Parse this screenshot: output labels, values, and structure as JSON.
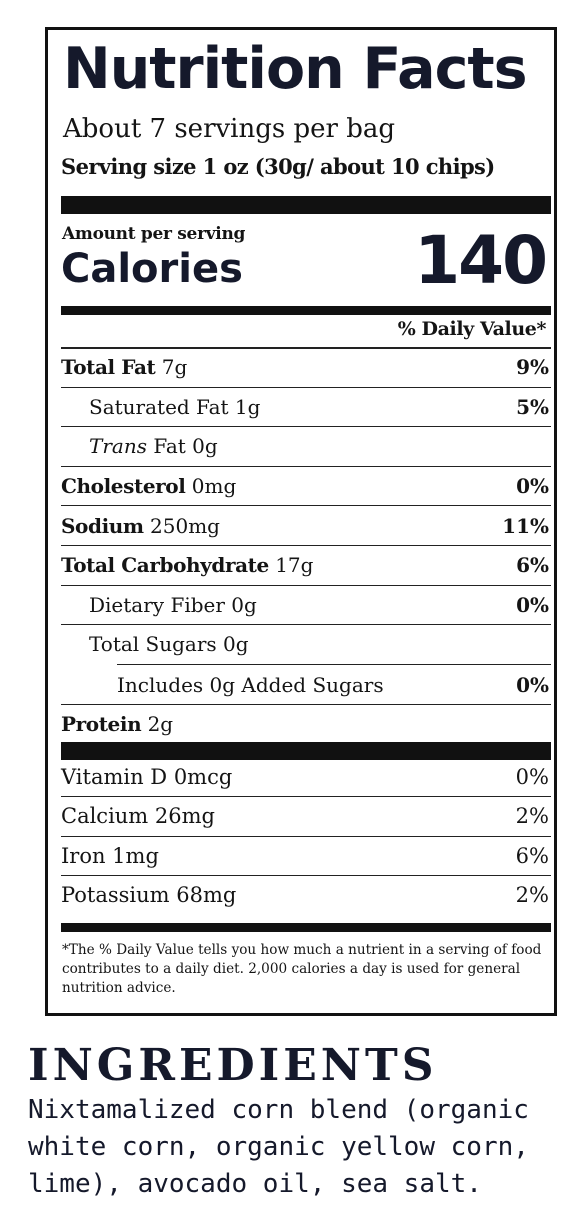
{
  "label": {
    "title": "Nutrition Facts",
    "servings_per_container": "About 7 servings per bag",
    "serving_size": "Serving size 1 oz (30g/ about 10 chips)",
    "amount_per_serving": "Amount per serving",
    "calories_label": "Calories",
    "calories_value": "140",
    "daily_value_header": "% Daily Value*",
    "nutrients": [
      {
        "name": "Total Fat",
        "amount": "7g",
        "dv": "9%"
      },
      {
        "name": "Saturated Fat",
        "amount": "1g",
        "dv": "5%"
      },
      {
        "name": "Trans",
        "amount": "Fat 0g",
        "dv": ""
      },
      {
        "name": "Cholesterol",
        "amount": "0mg",
        "dv": "0%"
      },
      {
        "name": "Sodium",
        "amount": "250mg",
        "dv": "11%"
      },
      {
        "name": "Total Carbohydrate",
        "amount": "17g",
        "dv": "6%"
      },
      {
        "name": "Dietary Fiber",
        "amount": "0g",
        "dv": "0%"
      },
      {
        "name": "Total Sugars",
        "amount": "0g",
        "dv": ""
      },
      {
        "name": "Includes 0g Added Sugars",
        "amount": "",
        "dv": "0%"
      },
      {
        "name": "Protein",
        "amount": "2g",
        "dv": ""
      }
    ],
    "vitamins": [
      {
        "name": "Vitamin D 0mcg",
        "dv": "0%"
      },
      {
        "name": "Calcium 26mg",
        "dv": "2%"
      },
      {
        "name": "Iron 1mg",
        "dv": "6%"
      },
      {
        "name": "Potassium 68mg",
        "dv": "2%"
      }
    ],
    "footnote": "*The % Daily Value tells you how much a nutrient in a serving of food contributes to a daily diet. 2,000 calories a day is used for general nutrition advice."
  },
  "ingredients": {
    "title": "INGREDIENTS",
    "text": "Nixtamalized corn blend (organic white corn, organic yellow corn, lime), avocado oil, sea salt."
  }
}
